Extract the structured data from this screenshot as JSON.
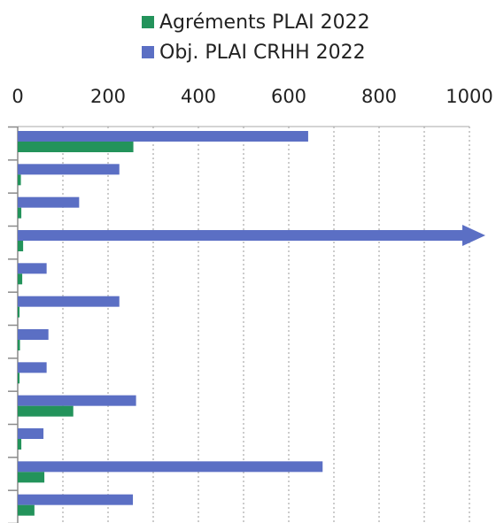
{
  "chart_data": {
    "type": "bar",
    "orientation": "horizontal",
    "categories": [
      "",
      "",
      "",
      "",
      "",
      "",
      "",
      "",
      "",
      "",
      "",
      ""
    ],
    "xlim": [
      0,
      1000
    ],
    "xticks": [
      "0",
      "200",
      "400",
      "600",
      "800",
      "1000"
    ],
    "legend_position": "top",
    "grid": "vertical dotted",
    "series": [
      {
        "name": "Obj. PLAI CRHH 2022",
        "color": "#5b6fc4",
        "values": [
          643,
          225,
          136,
          1000,
          64,
          225,
          68,
          64,
          262,
          57,
          675,
          255
        ],
        "note_overflow_index": 3
      },
      {
        "name": "Agréments PLAI 2022",
        "color": "#23935b",
        "values": [
          256,
          7,
          8,
          12,
          10,
          4,
          5,
          4,
          123,
          8,
          59,
          37
        ]
      }
    ]
  },
  "legend": {
    "items": [
      {
        "label": "Agréments PLAI 2022",
        "color": "#23935b"
      },
      {
        "label": "Obj. PLAI CRHH 2022",
        "color": "#5b6fc4"
      }
    ]
  }
}
